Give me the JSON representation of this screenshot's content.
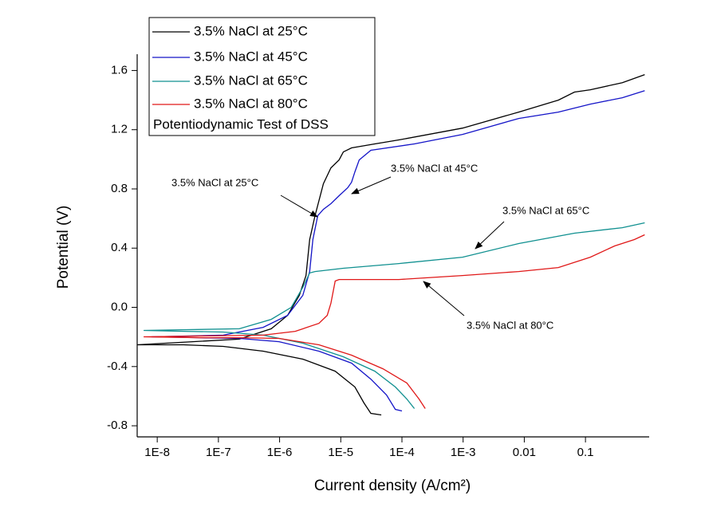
{
  "chart_data": {
    "type": "line",
    "x_label": "Current density (A/cm²)",
    "y_label": "Potential (V)",
    "log_x": true,
    "xlim": [
      4.7e-09,
      1.1
    ],
    "ylim": [
      -0.875,
      1.71
    ],
    "xticks": [
      {
        "value": 1e-08,
        "label": "1E-8"
      },
      {
        "value": 1e-07,
        "label": "1E-7"
      },
      {
        "value": 1e-06,
        "label": "1E-6"
      },
      {
        "value": 1e-05,
        "label": "1E-5"
      },
      {
        "value": 0.0001,
        "label": "1E-4"
      },
      {
        "value": 0.001,
        "label": "1E-3"
      },
      0.01,
      0.1
    ],
    "yticks": [
      -0.8,
      -0.4,
      {
        "value": 0,
        "label": "0.0"
      },
      0.4,
      0.8,
      1.2,
      1.6
    ],
    "legend_title": "Potentiodynamic Test of DSS",
    "legend_position": "upper left",
    "series": [
      {
        "name": "3.5% NaCl at 25°C",
        "color": "#000000",
        "x": [
          4.6e-05,
          3.1e-05,
          2.4e-05,
          1.7e-05,
          8.1e-06,
          2.4e-06,
          5.4e-07,
          1.2e-07,
          2.7e-08,
          4.7e-09,
          2.2e-07,
          7.3e-07,
          1.35e-06,
          2.1e-06,
          2.7e-06,
          3.1e-06,
          3.8e-06,
          5.2e-06,
          6.9e-06,
          9.4e-06,
          1.1e-05,
          1.5e-05,
          3.6e-05,
          8.9e-05,
          0.00098,
          0.0081,
          0.036,
          0.066,
          0.12,
          0.4,
          0.93
        ],
        "values": [
          -0.727,
          -0.716,
          -0.646,
          -0.538,
          -0.431,
          -0.35,
          -0.296,
          -0.264,
          -0.253,
          -0.253,
          -0.215,
          -0.145,
          -0.054,
          0.081,
          0.215,
          0.458,
          0.619,
          0.835,
          0.942,
          0.996,
          1.05,
          1.077,
          1.104,
          1.131,
          1.211,
          1.319,
          1.4,
          1.454,
          1.47,
          1.518,
          1.572
        ]
      },
      {
        "name": "3.5% NaCl at 45°C",
        "color": "#1414c8",
        "x": [
          0.0001,
          7.8e-05,
          5.6e-05,
          3.1e-05,
          1.5e-05,
          4.4e-06,
          9.8e-07,
          2.2e-07,
          4.9e-08,
          8.1e-09,
          1.2e-07,
          5.4e-07,
          1.35e-06,
          2.4e-06,
          3.1e-06,
          3.5e-06,
          4.2e-06,
          5.2e-06,
          6.9e-06,
          9.4e-06,
          1.3e-05,
          1.5e-05,
          1.7e-05,
          2e-05,
          3.1e-05,
          0.00016,
          0.00098,
          0.0081,
          0.036,
          0.12,
          0.4,
          0.93
        ],
        "values": [
          -0.7,
          -0.689,
          -0.592,
          -0.485,
          -0.377,
          -0.296,
          -0.232,
          -0.21,
          -0.205,
          -0.199,
          -0.188,
          -0.135,
          -0.054,
          0.081,
          0.242,
          0.458,
          0.619,
          0.662,
          0.7,
          0.754,
          0.808,
          0.845,
          0.915,
          0.996,
          1.061,
          1.104,
          1.168,
          1.276,
          1.319,
          1.373,
          1.416,
          1.464
        ]
      },
      {
        "name": "3.5% NaCl at 65°C",
        "color": "#109090",
        "x": [
          0.00016,
          0.00012,
          7.8e-05,
          3.6e-05,
          1.1e-05,
          2.4e-06,
          5.4e-07,
          1.2e-07,
          2.7e-08,
          6e-09,
          2.2e-07,
          7.3e-07,
          1.55e-06,
          2.4e-06,
          3.1e-06,
          3.8e-06,
          1.1e-05,
          8.9e-05,
          0.00098,
          0.0081,
          0.066,
          0.4,
          0.93
        ],
        "values": [
          -0.684,
          -0.619,
          -0.538,
          -0.431,
          -0.334,
          -0.242,
          -0.188,
          -0.167,
          -0.162,
          -0.156,
          -0.145,
          -0.081,
          0,
          0.135,
          0.232,
          0.242,
          0.264,
          0.296,
          0.339,
          0.431,
          0.501,
          0.538,
          0.571
        ]
      },
      {
        "name": "3.5% NaCl at 80°C",
        "color": "#e01818",
        "x": [
          0.00024,
          0.00019,
          0.00012,
          4.9e-05,
          1.5e-05,
          4.4e-06,
          9.8e-07,
          2.2e-07,
          4.9e-08,
          6e-09,
          5.4e-07,
          1.8e-06,
          4.4e-06,
          6e-06,
          6.9e-06,
          8.1e-06,
          9.4e-06,
          8.9e-05,
          0.00098,
          0.0081,
          0.036,
          0.12,
          0.3,
          0.63,
          0.93
        ],
        "values": [
          -0.684,
          -0.619,
          -0.511,
          -0.415,
          -0.323,
          -0.253,
          -0.21,
          -0.205,
          -0.205,
          -0.199,
          -0.188,
          -0.162,
          -0.108,
          -0.054,
          0.027,
          0.178,
          0.188,
          0.188,
          0.215,
          0.242,
          0.269,
          0.339,
          0.415,
          0.458,
          0.49
        ]
      }
    ],
    "annotations": [
      "3.5% NaCl at 25°C",
      "3.5% NaCl at 45°C",
      "3.5% NaCl at 65°C",
      "3.5% NaCl at 80°C"
    ]
  }
}
